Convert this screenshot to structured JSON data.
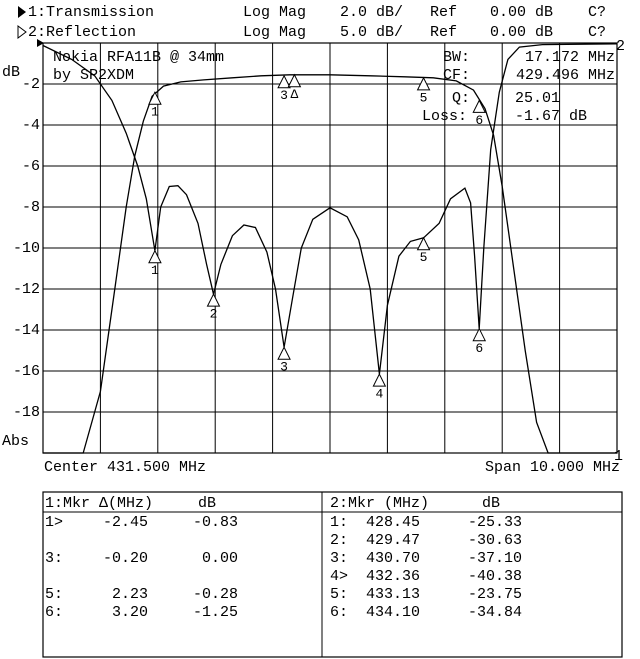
{
  "chart_data": {
    "type": "line",
    "header": [
      [
        "1:Transmission",
        "Log Mag",
        "2.0 dB/",
        "Ref",
        "0.00 dB",
        "C?"
      ],
      [
        "2:Reflection",
        "Log Mag",
        "5.0 dB/",
        "Ref",
        "0.00 dB",
        "C?"
      ]
    ],
    "notes": [
      "Nokia RFA11B @ 34mm",
      "by SP2XDM"
    ],
    "stats": [
      [
        "BW:",
        "17.172 MHz"
      ],
      [
        "CF:",
        "429.496 MHz"
      ],
      [
        "Q:",
        "25.01"
      ],
      [
        "Loss:",
        "-1.67 dB"
      ]
    ],
    "y_label": "dB",
    "y_label_bottom": "Abs",
    "x_left_label": "Center 431.500 MHz",
    "x_right_label": "Span 10.000 MHz",
    "trace_end_labels": [
      "2",
      "1"
    ],
    "xlim": [
      426.5,
      436.5
    ],
    "xticks": [
      427.5,
      428.5,
      429.5,
      430.5,
      431.5,
      432.5,
      433.5,
      434.5,
      435.5
    ],
    "ylim": [
      -20,
      0
    ],
    "yticks": [
      -2,
      -4,
      -6,
      -8,
      -10,
      -12,
      -14,
      -16,
      -18
    ],
    "y2lim": [
      -50,
      0
    ],
    "grid": true,
    "series": [
      {
        "name": "Transmission",
        "color": "#000000",
        "x": [
          426.5,
          427.2,
          427.5,
          427.75,
          427.95,
          428.1,
          428.25,
          428.4,
          428.6,
          428.9,
          429.3,
          429.8,
          430.3,
          430.8,
          431.5,
          432.2,
          432.8,
          433.3,
          433.7,
          434.0,
          434.2,
          434.35,
          434.5,
          434.7,
          434.9,
          435.1,
          435.3,
          436.5
        ],
        "values": [
          -20,
          -20,
          -17,
          -12,
          -8,
          -5.5,
          -3.8,
          -2.6,
          -2.1,
          -1.9,
          -1.8,
          -1.7,
          -1.6,
          -1.55,
          -1.55,
          -1.6,
          -1.65,
          -1.7,
          -1.85,
          -2.3,
          -3.2,
          -4.5,
          -7,
          -11,
          -15,
          -18.5,
          -20,
          -20
        ]
      },
      {
        "name": "Reflection",
        "color": "#000000",
        "axis": "y2",
        "x": [
          426.5,
          427.0,
          427.4,
          427.7,
          427.95,
          428.15,
          428.3,
          428.45,
          428.55,
          428.7,
          428.85,
          429.0,
          429.2,
          429.35,
          429.47,
          429.6,
          429.8,
          430.0,
          430.2,
          430.4,
          430.55,
          430.7,
          430.85,
          431.0,
          431.2,
          431.5,
          431.8,
          432.0,
          432.2,
          432.36,
          432.5,
          432.7,
          432.9,
          433.13,
          433.4,
          433.6,
          433.85,
          433.95,
          434.02,
          434.1,
          434.18,
          434.3,
          434.45,
          434.6,
          434.8,
          435.2,
          436.5
        ],
        "values": [
          -0.3,
          -2,
          -4,
          -7,
          -11,
          -15,
          -19,
          -25.33,
          -20,
          -17.5,
          -17.4,
          -18.5,
          -22,
          -27,
          -30.63,
          -27,
          -23.5,
          -22.2,
          -22.5,
          -25.5,
          -30,
          -37.1,
          -31,
          -25,
          -21.5,
          -20.1,
          -21.2,
          -24,
          -30,
          -40.38,
          -32,
          -26,
          -24.2,
          -23.75,
          -22,
          -19,
          -17.7,
          -19.5,
          -26,
          -34.84,
          -25,
          -13,
          -6,
          -2,
          -0.5,
          -0.2,
          -0.1
        ]
      }
    ],
    "markers_1": {
      "labels": [
        "1",
        "3",
        "Δ",
        "5",
        "6"
      ],
      "x": [
        428.45,
        430.7,
        430.88,
        433.13,
        434.1
      ],
      "values": [
        -2.4,
        -1.6,
        -1.55,
        -1.7,
        -2.8
      ]
    },
    "markers_2": {
      "labels": [
        "1",
        "2",
        "3",
        "4",
        "5",
        "6"
      ],
      "x": [
        428.45,
        429.47,
        430.7,
        432.36,
        433.13,
        434.1
      ],
      "values": [
        -25.33,
        -30.63,
        -37.1,
        -40.38,
        -23.75,
        -34.84
      ]
    },
    "table_1": {
      "title": "1:Mkr Δ(MHz)",
      "unit": "dB",
      "rows": [
        [
          "1>",
          "-2.45",
          "-0.83"
        ],
        [
          "3:",
          "-0.20",
          "0.00"
        ],
        [
          "5:",
          "2.23",
          "-0.28"
        ],
        [
          "6:",
          "3.20",
          "-1.25"
        ]
      ]
    },
    "table_2": {
      "title": "2:Mkr (MHz)",
      "unit": "dB",
      "rows": [
        [
          "1:",
          "428.45",
          "-25.33"
        ],
        [
          "2:",
          "429.47",
          "-30.63"
        ],
        [
          "3:",
          "430.70",
          "-37.10"
        ],
        [
          "4>",
          "432.36",
          "-40.38"
        ],
        [
          "5:",
          "433.13",
          "-23.75"
        ],
        [
          "6:",
          "434.10",
          "-34.84"
        ]
      ]
    }
  }
}
